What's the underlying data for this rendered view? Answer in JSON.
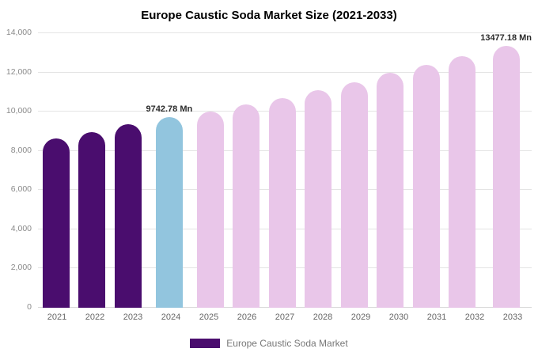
{
  "title": "Europe Caustic Soda Market Size (2021-2033)",
  "legend": {
    "label": "Europe Caustic Soda Market",
    "swatch_color": "#4a0d6e"
  },
  "colors": {
    "historical": "#4a0d6e",
    "current": "#92c5de",
    "forecast": "#e9c6e9",
    "grid": "#e4e4e4",
    "axis_text": "#8a8a8a"
  },
  "chart_data": {
    "type": "bar",
    "title": "Europe Caustic Soda Market Size (2021-2033)",
    "categories": [
      "2021",
      "2022",
      "2023",
      "2024",
      "2025",
      "2026",
      "2027",
      "2028",
      "2029",
      "2030",
      "2031",
      "2032",
      "2033"
    ],
    "values": [
      8650,
      8950,
      9350,
      9742.78,
      10000,
      10350,
      10700,
      11100,
      11500,
      12000,
      12400,
      12850,
      13477.18
    ],
    "bar_colors": [
      "historical",
      "historical",
      "historical",
      "current",
      "forecast",
      "forecast",
      "forecast",
      "forecast",
      "forecast",
      "forecast",
      "forecast",
      "forecast",
      "forecast"
    ],
    "annotations": [
      {
        "index": 3,
        "text": "9742.78 Mn"
      },
      {
        "index": 12,
        "text": "13477.18 Mn"
      }
    ],
    "xlabel": "",
    "ylabel": "",
    "ylim": [
      0,
      14000
    ],
    "yticks": [
      "0",
      "2,000",
      "4,000",
      "6,000",
      "8,000",
      "10,000",
      "12,000",
      "14,000"
    ],
    "grid": true,
    "legend_position": "bottom",
    "unit": "Mn"
  }
}
